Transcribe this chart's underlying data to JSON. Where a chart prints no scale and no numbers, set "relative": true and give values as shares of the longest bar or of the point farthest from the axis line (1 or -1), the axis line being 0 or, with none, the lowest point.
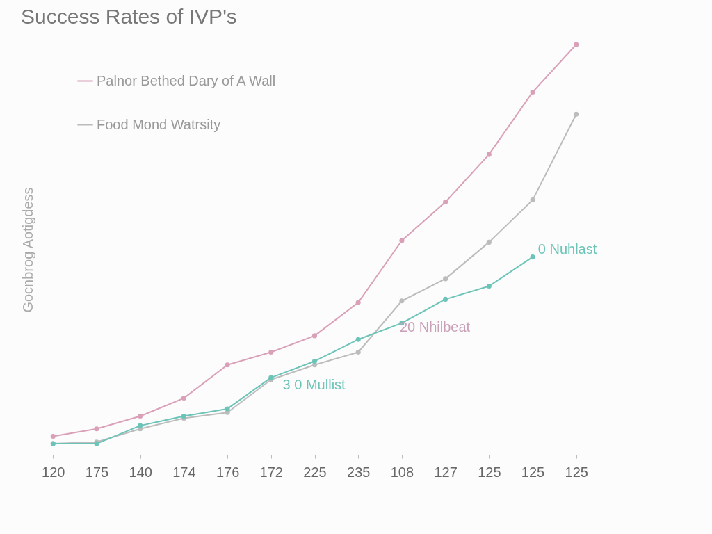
{
  "chart_data": {
    "type": "line",
    "title": "Success Rates of IVP's",
    "ylabel": "Gocnbrog Aotigdess",
    "relative": true,
    "categories": [
      "120",
      "175",
      "140",
      "174",
      "176",
      "172",
      "225",
      "235",
      "108",
      "127",
      "125",
      "125",
      "125"
    ],
    "series": [
      {
        "name": "Palnor Bethed Dary of A Wall",
        "color": "#d9a0b8",
        "values": [
          0.045,
          0.063,
          0.094,
          0.138,
          0.219,
          0.25,
          0.29,
          0.371,
          0.522,
          0.616,
          0.732,
          0.884,
          1
        ]
      },
      {
        "name": "Food Mond Watrsity",
        "color": "#bcbcbc",
        "values": [
          0.027,
          0.031,
          0.063,
          0.089,
          0.103,
          0.183,
          0.219,
          0.25,
          0.375,
          0.429,
          0.518,
          0.621,
          0.83
        ]
      },
      {
        "color": "#6cc4b8",
        "values": [
          0.027,
          0.027,
          0.071,
          0.094,
          0.112,
          0.188,
          0.228,
          0.281,
          0.321,
          0.379,
          0.411,
          0.482,
          null
        ]
      }
    ],
    "annotations": [
      "0 Nuhlast",
      "20 Nhilbeat",
      "3 0 Mullist"
    ],
    "marker": "circle",
    "legend": "top left",
    "grid": false
  }
}
